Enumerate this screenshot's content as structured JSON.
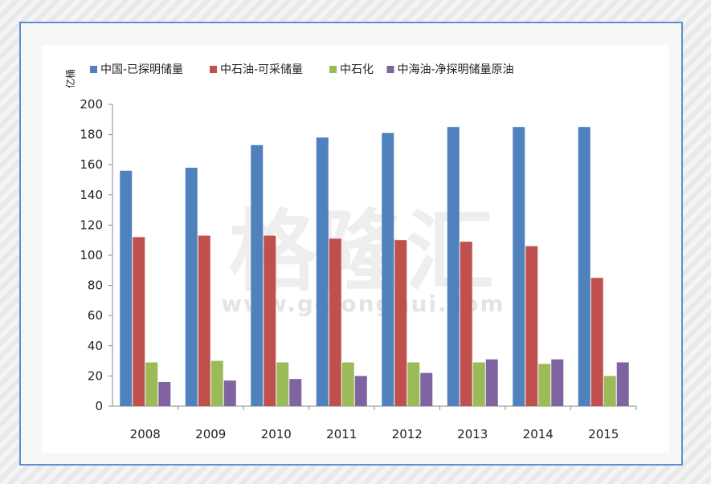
{
  "watermark": {
    "main": "格隆汇",
    "url": "www.gelonghui.com"
  },
  "chart_data": {
    "type": "bar",
    "ylabel": "亿桶",
    "ylim": [
      0,
      200
    ],
    "yticks": [
      0,
      20,
      40,
      60,
      80,
      100,
      120,
      140,
      160,
      180,
      200
    ],
    "categories": [
      "2008",
      "2009",
      "2010",
      "2011",
      "2012",
      "2013",
      "2014",
      "2015"
    ],
    "legend_position": "top",
    "series": [
      {
        "name": "中国-已探明储量",
        "color": "#4f81bd",
        "values": [
          156,
          158,
          173,
          178,
          181,
          185,
          185,
          185
        ]
      },
      {
        "name": "中石油-可采储量",
        "color": "#c0504d",
        "values": [
          112,
          113,
          113,
          111,
          110,
          109,
          106,
          85
        ]
      },
      {
        "name": "中石化",
        "color": "#9bbb59",
        "values": [
          29,
          30,
          29,
          29,
          29,
          29,
          28,
          20
        ]
      },
      {
        "name": "中海油-净探明储量原油",
        "color": "#8064a2",
        "values": [
          16,
          17,
          18,
          20,
          22,
          31,
          31,
          29
        ]
      }
    ]
  }
}
